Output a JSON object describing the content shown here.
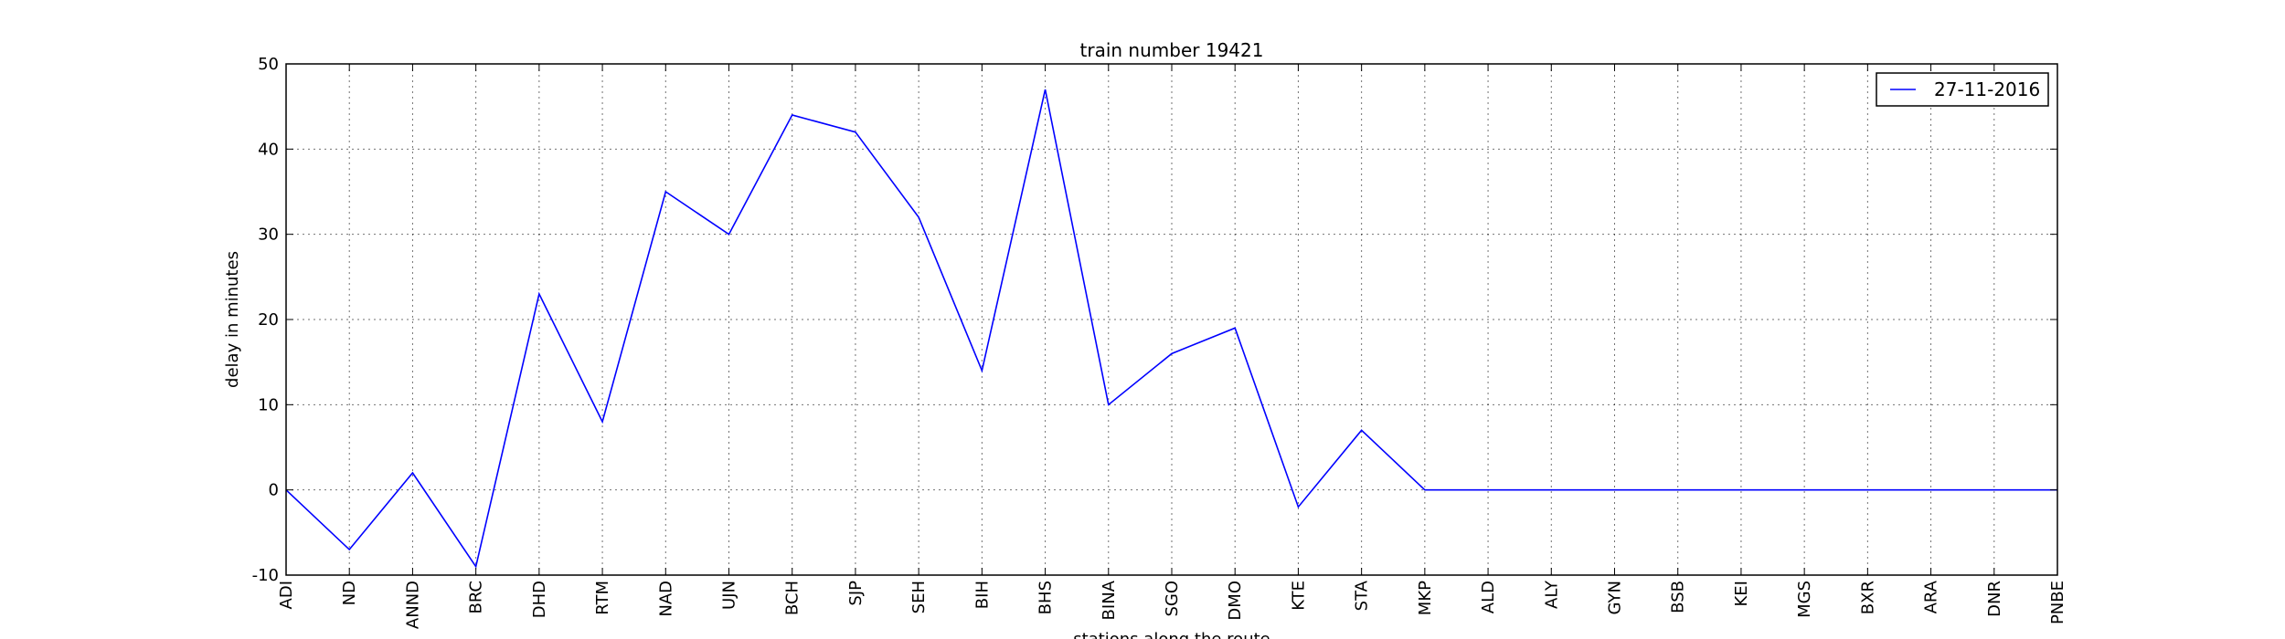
{
  "chart_data": {
    "type": "line",
    "title": "train number 19421",
    "xlabel": "stations along the route",
    "ylabel": "delay in minutes",
    "ylim": [
      -10,
      50
    ],
    "yticks": [
      -10,
      0,
      10,
      20,
      30,
      40,
      50
    ],
    "grid": true,
    "legend_position": "top-right",
    "categories": [
      "ADI",
      "ND",
      "ANND",
      "BRC",
      "DHD",
      "RTM",
      "NAD",
      "UJN",
      "BCH",
      "SJP",
      "SEH",
      "BIH",
      "BHS",
      "BINA",
      "SGO",
      "DMO",
      "KTE",
      "STA",
      "MKP",
      "ALD",
      "ALY",
      "GYN",
      "BSB",
      "KEI",
      "MGS",
      "BXR",
      "ARA",
      "DNR",
      "PNBE"
    ],
    "series": [
      {
        "name": "27-11-2016",
        "color": "#0000ff",
        "values": [
          0,
          -7,
          2,
          -9,
          23,
          8,
          35,
          30,
          44,
          42,
          32,
          14,
          47,
          10,
          16,
          19,
          -2,
          7,
          0,
          0,
          0,
          0,
          0,
          0,
          0,
          0,
          0,
          0,
          0
        ]
      }
    ]
  }
}
